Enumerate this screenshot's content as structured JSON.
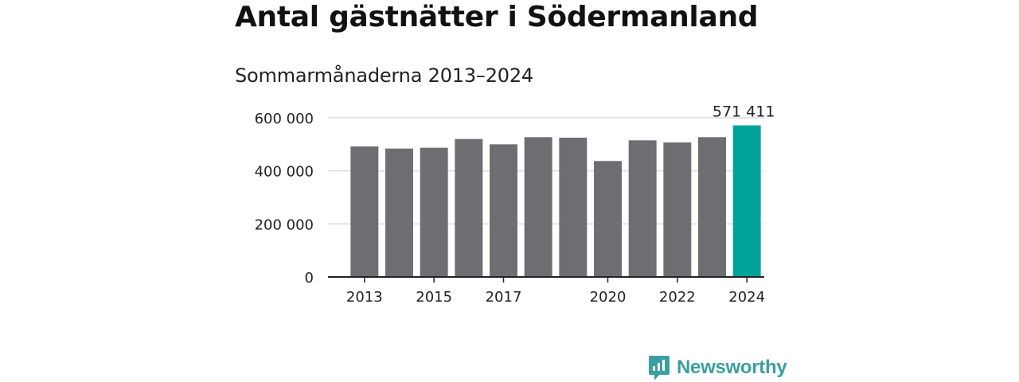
{
  "header": {
    "title": "Antal gästnätter i Södermanland",
    "subtitle": "Sommarmånaderna 2013–2024"
  },
  "chart_data": {
    "type": "bar",
    "categories": [
      "2013",
      "2014",
      "2015",
      "2016",
      "2017",
      "2018",
      "2019",
      "2020",
      "2021",
      "2022",
      "2023",
      "2024"
    ],
    "values": [
      492000,
      484000,
      487000,
      520000,
      500000,
      527000,
      525000,
      437000,
      515000,
      507000,
      527000,
      571411
    ],
    "x_tick_labels": [
      "2013",
      "",
      "2015",
      "",
      "2017",
      "",
      "",
      "2020",
      "",
      "2022",
      "",
      "2024"
    ],
    "y_ticks": [
      0,
      200000,
      400000,
      600000
    ],
    "y_tick_labels": [
      "0",
      "200 000",
      "400 000",
      "600 000"
    ],
    "ylim": [
      0,
      600000
    ],
    "highlight_index": 11,
    "highlight_label": "571 411",
    "grid": true,
    "colors": {
      "bar": "#6d6d72",
      "highlight": "#00a39a",
      "grid": "#dddddd",
      "axis": "#222222"
    }
  },
  "branding": {
    "name": "Newsworthy",
    "icon": "newsworthy-logo-icon",
    "color": "#3c9fa0"
  }
}
